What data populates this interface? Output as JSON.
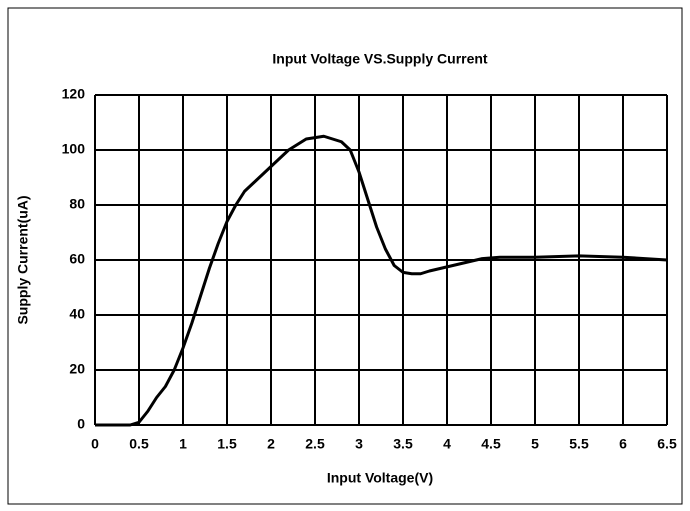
{
  "chart_data": {
    "type": "line",
    "title": "Input Voltage VS.Supply Current",
    "xlabel": "Input Voltage(V)",
    "ylabel": "Supply Current(uA)",
    "x": [
      0,
      0.4,
      0.5,
      0.6,
      0.7,
      0.8,
      0.9,
      1.0,
      1.1,
      1.2,
      1.3,
      1.4,
      1.5,
      1.6,
      1.7,
      1.8,
      2.0,
      2.2,
      2.4,
      2.6,
      2.8,
      2.9,
      3.0,
      3.1,
      3.2,
      3.3,
      3.4,
      3.5,
      3.6,
      3.7,
      3.8,
      4.0,
      4.2,
      4.4,
      4.6,
      5.0,
      5.5,
      6.0,
      6.5
    ],
    "series": [
      {
        "color": "#000000",
        "values": [
          0,
          0,
          1,
          5,
          10,
          14,
          20,
          28,
          37,
          47,
          57,
          66,
          74,
          80,
          85,
          88,
          94,
          100,
          104,
          105,
          103,
          100,
          92,
          82,
          72,
          64,
          58,
          55.5,
          55,
          55,
          56,
          57.5,
          59,
          60.5,
          61,
          61,
          61.5,
          61,
          60
        ]
      }
    ],
    "xlim": [
      0,
      6.5
    ],
    "xticks": [
      0,
      0.5,
      1,
      1.5,
      2,
      2.5,
      3,
      3.5,
      4,
      4.5,
      5,
      5.5,
      6,
      6.5
    ],
    "ylim": [
      0,
      120
    ],
    "yticks": [
      0,
      20,
      40,
      60,
      80,
      100,
      120
    ],
    "grid": true
  }
}
